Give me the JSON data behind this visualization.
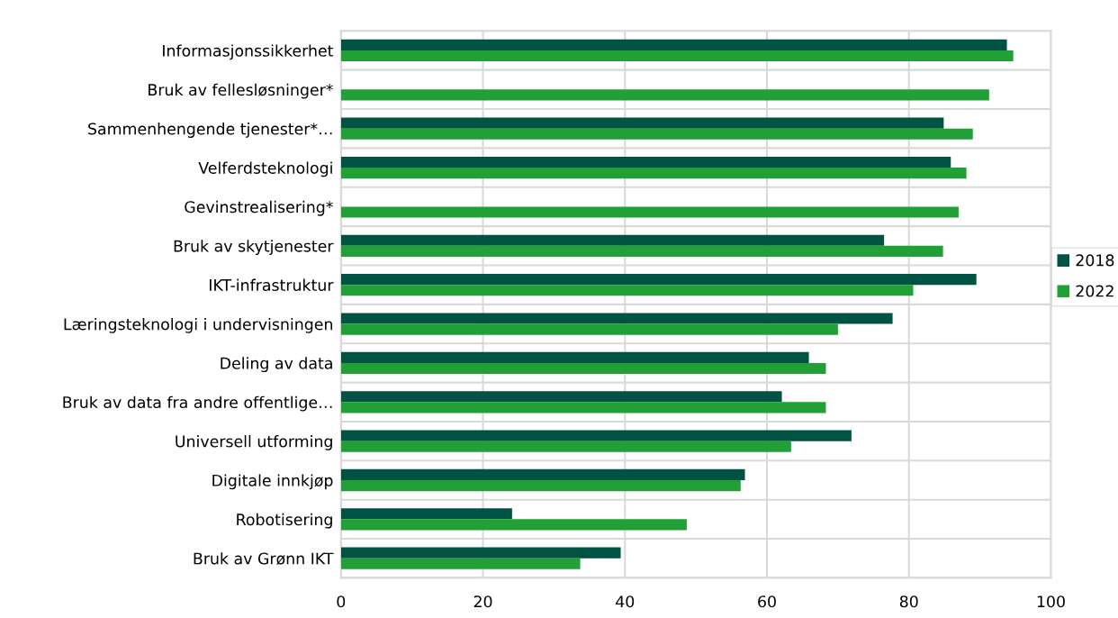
{
  "chart_data": {
    "type": "bar",
    "orientation": "horizontal",
    "categories": [
      "Informasjonssikkerhet",
      "Bruk av fellesløsninger*",
      "Sammenhengende tjenester*…",
      "Velferdsteknologi",
      "Gevinstrealisering*",
      "Bruk av skytjenester",
      "IKT-infrastruktur",
      "Læringsteknologi i undervisningen",
      "Deling av data",
      "Bruk av data fra andre offentlige…",
      "Universell utforming",
      "Digitale innkjøp",
      "Robotisering",
      "Bruk av Grønn IKT"
    ],
    "series": [
      {
        "name": "2018",
        "color": "#005242",
        "values": [
          93.8,
          null,
          84.9,
          85.9,
          null,
          76.5,
          89.5,
          77.7,
          65.9,
          62.1,
          71.9,
          56.9,
          24.1,
          39.4
        ]
      },
      {
        "name": "2022",
        "color": "#21a038",
        "values": [
          94.7,
          91.3,
          89.0,
          88.1,
          87.0,
          84.8,
          80.6,
          70.0,
          68.3,
          68.3,
          63.4,
          56.3,
          48.7,
          33.7
        ]
      }
    ],
    "xlim": [
      0,
      100
    ],
    "xticks": [
      0,
      20,
      40,
      60,
      80,
      100
    ],
    "grid": true,
    "legend": "right"
  }
}
